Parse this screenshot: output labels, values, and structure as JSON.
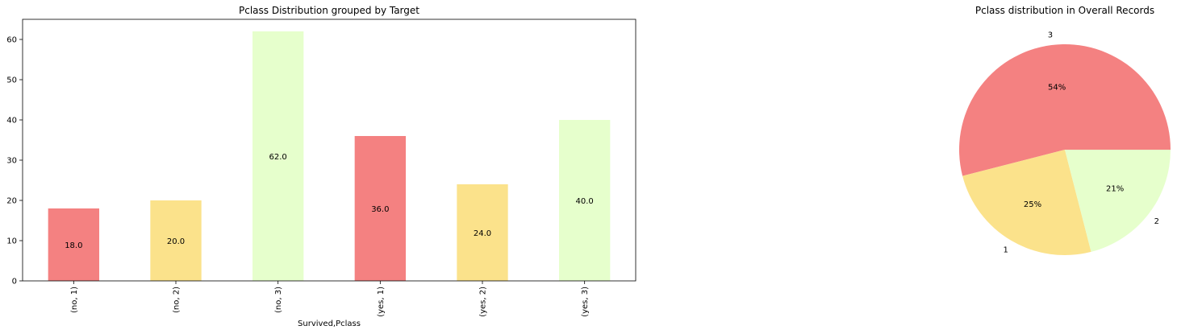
{
  "chart_data": [
    {
      "type": "bar",
      "title": "Pclass Distribution grouped by Target",
      "xlabel": "Survived,Pclass",
      "ylabel": "",
      "categories": [
        "(no, 1)",
        "(no, 2)",
        "(no, 3)",
        "(yes, 1)",
        "(yes, 2)",
        "(yes, 3)"
      ],
      "values": [
        18,
        20,
        62,
        36,
        24,
        40
      ],
      "data_labels": [
        "18.0",
        "20.0",
        "62.0",
        "36.0",
        "24.0",
        "40.0"
      ],
      "colors": [
        "#f48181",
        "#fbe28b",
        "#e6ffcc",
        "#f48181",
        "#fbe28b",
        "#e6ffcc"
      ],
      "ylim": [
        0,
        65
      ],
      "yticks": [
        0,
        10,
        20,
        30,
        40,
        50,
        60
      ],
      "grid": false,
      "legend": "none"
    },
    {
      "type": "pie",
      "title": "Pclass distribution in Overall Records",
      "labels": [
        "3",
        "1",
        "2"
      ],
      "values": [
        54,
        25,
        21
      ],
      "pct_labels": [
        "54%",
        "25%",
        "21%"
      ],
      "colors": [
        "#f48181",
        "#fbe28b",
        "#e6ffcc"
      ],
      "legend": "none"
    }
  ]
}
